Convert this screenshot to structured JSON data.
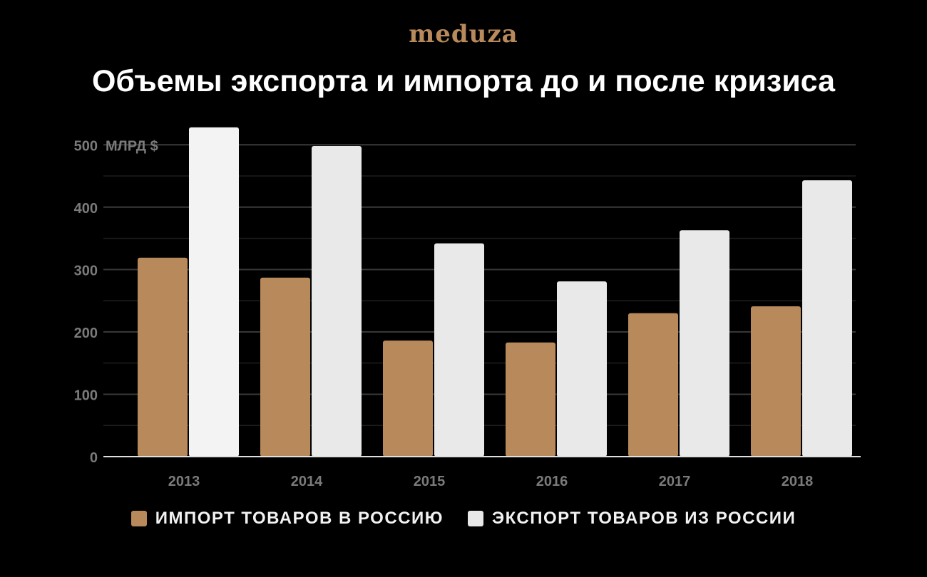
{
  "brand": {
    "logo_text": "meduza",
    "accent_color": "#b8895a"
  },
  "chart_data": {
    "type": "bar",
    "title": "Объемы экспорта и импорта до и после кризиса",
    "xlabel": "",
    "ylabel": "",
    "unit_label": "МЛРД $",
    "categories": [
      "2013",
      "2014",
      "2015",
      "2016",
      "2017",
      "2018"
    ],
    "series": [
      {
        "name": "ИМПОРТ ТОВАРОВ В РОССИЮ",
        "color": "#b8895a",
        "values": [
          319,
          287,
          186,
          183,
          230,
          241
        ]
      },
      {
        "name": "ЭКСПОРТ ТОВАРОВ ИЗ РОССИИ",
        "color": "#e8e8e8",
        "values": [
          528,
          498,
          342,
          281,
          363,
          443
        ]
      }
    ],
    "y_ticks": [
      0,
      100,
      200,
      300,
      400,
      500
    ],
    "y_tick_labels": [
      "0",
      "100",
      "200",
      "300",
      "400",
      "500"
    ],
    "ylim": [
      0,
      530
    ],
    "grid": true,
    "legend_position": "bottom"
  }
}
